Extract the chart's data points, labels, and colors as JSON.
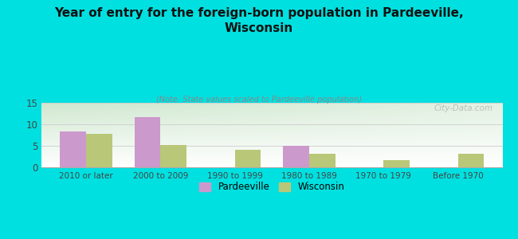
{
  "title": "Year of entry for the foreign-born population in Pardeeville,\nWisconsin",
  "subtitle": "(Note: State values scaled to Pardeeville population)",
  "categories": [
    "2010 or later",
    "2000 to 2009",
    "1990 to 1999",
    "1980 to 1989",
    "1970 to 1979",
    "Before 1970"
  ],
  "pardeeville_values": [
    8.3,
    11.6,
    0,
    5.0,
    0,
    0
  ],
  "wisconsin_values": [
    7.7,
    5.2,
    4.1,
    3.1,
    1.6,
    3.1
  ],
  "pardeeville_color": "#cc99cc",
  "wisconsin_color": "#b8c878",
  "background_color": "#00e0e0",
  "ylim": [
    0,
    15
  ],
  "yticks": [
    0,
    5,
    10,
    15
  ],
  "bar_width": 0.35,
  "watermark": "City-Data.com",
  "legend_pardeeville": "Pardeeville",
  "legend_wisconsin": "Wisconsin",
  "gradient_top_left": "#d0e8d0",
  "gradient_right": "#f0f4ec",
  "gradient_bottom": "#ffffff"
}
